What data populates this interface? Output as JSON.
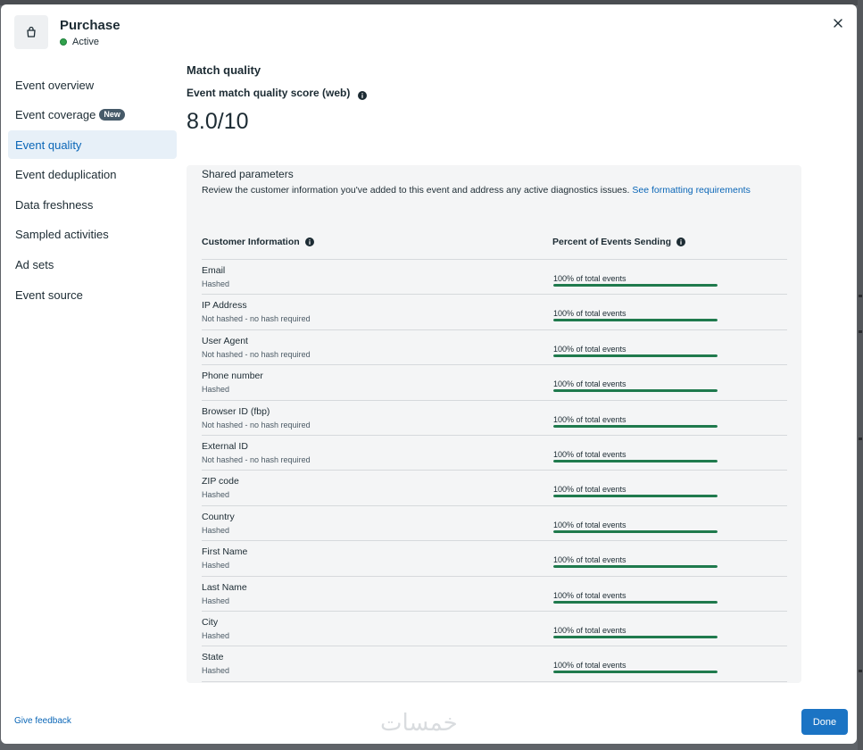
{
  "header": {
    "title": "Purchase",
    "status": "Active",
    "icon": "shopping-bag-icon"
  },
  "sidebar": {
    "items": [
      {
        "label": "Event overview"
      },
      {
        "label": "Event coverage",
        "badge": "New"
      },
      {
        "label": "Event quality",
        "active": true
      },
      {
        "label": "Event deduplication"
      },
      {
        "label": "Data freshness"
      },
      {
        "label": "Sampled activities"
      },
      {
        "label": "Ad sets"
      },
      {
        "label": "Event source"
      }
    ]
  },
  "main": {
    "section_title": "Match quality",
    "score_label": "Event match quality score (web)",
    "score_value": "8.0/10"
  },
  "panel": {
    "title": "Shared parameters",
    "description": "Review the customer information you've added to this event and address any active diagnostics issues.",
    "link_text": "See formatting requirements",
    "columns": [
      "Customer Information",
      "Percent of Events Sending"
    ],
    "rows": [
      {
        "name": "Email",
        "hash": "Hashed",
        "pct_text": "100% of total events",
        "pct": 100
      },
      {
        "name": "IP Address",
        "hash": "Not hashed - no hash required",
        "pct_text": "100% of total events",
        "pct": 100
      },
      {
        "name": "User Agent",
        "hash": "Not hashed - no hash required",
        "pct_text": "100% of total events",
        "pct": 100
      },
      {
        "name": "Phone number",
        "hash": "Hashed",
        "pct_text": "100% of total events",
        "pct": 100
      },
      {
        "name": "Browser ID (fbp)",
        "hash": "Not hashed - no hash required",
        "pct_text": "100% of total events",
        "pct": 100
      },
      {
        "name": "External ID",
        "hash": "Not hashed - no hash required",
        "pct_text": "100% of total events",
        "pct": 100
      },
      {
        "name": "ZIP code",
        "hash": "Hashed",
        "pct_text": "100% of total events",
        "pct": 100
      },
      {
        "name": "Country",
        "hash": "Hashed",
        "pct_text": "100% of total events",
        "pct": 100
      },
      {
        "name": "First Name",
        "hash": "Hashed",
        "pct_text": "100% of total events",
        "pct": 100
      },
      {
        "name": "Last Name",
        "hash": "Hashed",
        "pct_text": "100% of total events",
        "pct": 100
      },
      {
        "name": "City",
        "hash": "Hashed",
        "pct_text": "100% of total events",
        "pct": 100
      },
      {
        "name": "State",
        "hash": "Hashed",
        "pct_text": "100% of total events",
        "pct": 100
      }
    ]
  },
  "footer": {
    "feedback": "Give feedback",
    "done": "Done",
    "watermark": "خمسات"
  },
  "colors": {
    "accent": "#1b74c4",
    "progress": "#1f7a4d",
    "active_nav_bg": "#e7f0f8",
    "status_active": "#31a24c"
  }
}
